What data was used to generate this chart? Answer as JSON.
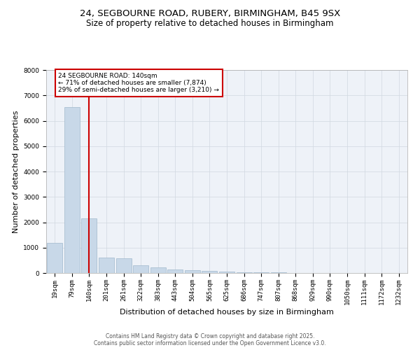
{
  "title_line1": "24, SEGBOURNE ROAD, RUBERY, BIRMINGHAM, B45 9SX",
  "title_line2": "Size of property relative to detached houses in Birmingham",
  "xlabel": "Distribution of detached houses by size in Birmingham",
  "ylabel": "Number of detached properties",
  "categories": [
    "19sqm",
    "79sqm",
    "140sqm",
    "201sqm",
    "261sqm",
    "322sqm",
    "383sqm",
    "443sqm",
    "504sqm",
    "565sqm",
    "625sqm",
    "686sqm",
    "747sqm",
    "807sqm",
    "868sqm",
    "929sqm",
    "990sqm",
    "1050sqm",
    "1111sqm",
    "1172sqm",
    "1232sqm"
  ],
  "values": [
    1200,
    6550,
    2150,
    620,
    580,
    290,
    230,
    130,
    110,
    80,
    50,
    30,
    20,
    15,
    10,
    5,
    5,
    0,
    0,
    0,
    0
  ],
  "bar_color": "#c8d8e8",
  "bar_edge_color": "#a0b8cc",
  "vline_x_index": 2,
  "vline_color": "#cc0000",
  "annotation_text": "24 SEGBOURNE ROAD: 140sqm\n← 71% of detached houses are smaller (7,874)\n29% of semi-detached houses are larger (3,210) →",
  "annotation_box_color": "#ffffff",
  "annotation_box_edge_color": "#cc0000",
  "ylim": [
    0,
    8000
  ],
  "yticks": [
    0,
    1000,
    2000,
    3000,
    4000,
    5000,
    6000,
    7000,
    8000
  ],
  "grid_color": "#d0d8e0",
  "background_color": "#eef2f8",
  "footer_text": "Contains HM Land Registry data © Crown copyright and database right 2025.\nContains public sector information licensed under the Open Government Licence v3.0.",
  "title_fontsize": 9.5,
  "subtitle_fontsize": 8.5,
  "tick_fontsize": 6.5,
  "label_fontsize": 8,
  "footer_fontsize": 5.5
}
